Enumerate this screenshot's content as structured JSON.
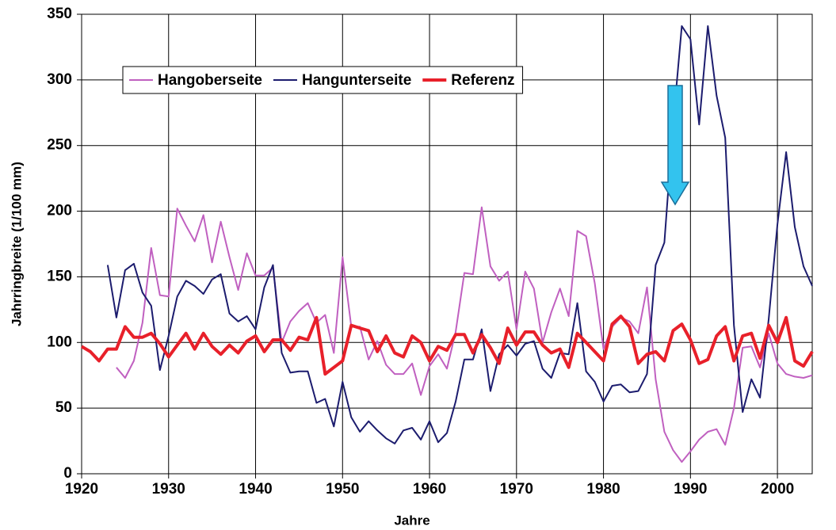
{
  "chart_data": {
    "type": "line",
    "xlabel": "Jahre",
    "ylabel": "Jahrringbreite (1/100 mm)",
    "x": [
      1920,
      1921,
      1922,
      1923,
      1924,
      1925,
      1926,
      1927,
      1928,
      1929,
      1930,
      1931,
      1932,
      1933,
      1934,
      1935,
      1936,
      1937,
      1938,
      1939,
      1940,
      1941,
      1942,
      1943,
      1944,
      1945,
      1946,
      1947,
      1948,
      1949,
      1950,
      1951,
      1952,
      1953,
      1954,
      1955,
      1956,
      1957,
      1958,
      1959,
      1960,
      1961,
      1962,
      1963,
      1964,
      1965,
      1966,
      1967,
      1968,
      1969,
      1970,
      1971,
      1972,
      1973,
      1974,
      1975,
      1976,
      1977,
      1978,
      1979,
      1980,
      1981,
      1982,
      1983,
      1984,
      1985,
      1986,
      1987,
      1988,
      1989,
      1990,
      1991,
      1992,
      1993,
      1994,
      1995,
      1996,
      1997,
      1998,
      1999,
      2000,
      2001,
      2002,
      2003,
      2004
    ],
    "series": [
      {
        "name": "Hangoberseite",
        "color": "#c060c0",
        "width": 2,
        "values": [
          null,
          null,
          null,
          null,
          81,
          73,
          86,
          115,
          172,
          136,
          135,
          202,
          189,
          177,
          197,
          161,
          192,
          165,
          140,
          168,
          151,
          151,
          157,
          100,
          116,
          124,
          130,
          115,
          121,
          92,
          165,
          112,
          112,
          87,
          101,
          83,
          76,
          76,
          84,
          60,
          82,
          91,
          80,
          108,
          153,
          152,
          203,
          158,
          147,
          154,
          110,
          154,
          141,
          100,
          123,
          141,
          120,
          185,
          181,
          145,
          95,
          112,
          119,
          116,
          107,
          142,
          72,
          32,
          18,
          9,
          17,
          26,
          32,
          34,
          22,
          50,
          96,
          97,
          81,
          107,
          84,
          76,
          74,
          73,
          75
        ]
      },
      {
        "name": "Hangunterseite",
        "color": "#1c1c6e",
        "width": 2,
        "values": [
          null,
          null,
          null,
          159,
          119,
          155,
          160,
          138,
          128,
          79,
          105,
          135,
          147,
          143,
          137,
          148,
          152,
          122,
          116,
          120,
          110,
          142,
          159,
          92,
          77,
          78,
          78,
          54,
          57,
          36,
          70,
          43,
          32,
          40,
          33,
          27,
          23,
          33,
          35,
          26,
          40,
          24,
          31,
          55,
          87,
          87,
          110,
          63,
          91,
          98,
          90,
          99,
          101,
          80,
          73,
          92,
          91,
          130,
          78,
          70,
          55,
          67,
          68,
          62,
          63,
          76,
          159,
          176,
          266,
          341,
          331,
          266,
          341,
          288,
          256,
          113,
          47,
          72,
          58,
          118,
          190,
          245,
          188,
          158,
          143
        ]
      },
      {
        "name": "Referenz",
        "color": "#e8202a",
        "width": 4,
        "values": [
          97,
          93,
          86,
          95,
          95,
          112,
          104,
          104,
          107,
          99,
          89,
          98,
          107,
          95,
          107,
          97,
          91,
          98,
          92,
          101,
          105,
          93,
          102,
          102,
          94,
          104,
          102,
          119,
          76,
          81,
          86,
          113,
          111,
          109,
          93,
          105,
          92,
          89,
          105,
          100,
          86,
          97,
          94,
          106,
          106,
          92,
          106,
          96,
          84,
          111,
          98,
          108,
          108,
          98,
          92,
          95,
          81,
          107,
          100,
          93,
          86,
          114,
          120,
          112,
          84,
          91,
          93,
          86,
          109,
          114,
          102,
          84,
          87,
          105,
          112,
          86,
          105,
          107,
          88,
          113,
          100,
          119,
          86,
          82,
          93
        ]
      }
    ],
    "xlim": [
      1920,
      2004
    ],
    "xticks": [
      1920,
      1930,
      1940,
      1950,
      1960,
      1970,
      1980,
      1990,
      2000
    ],
    "ylim": [
      0,
      350
    ],
    "yticks": [
      0,
      50,
      100,
      150,
      200,
      250,
      300,
      350
    ],
    "grid": true,
    "legend": "top-left"
  }
}
